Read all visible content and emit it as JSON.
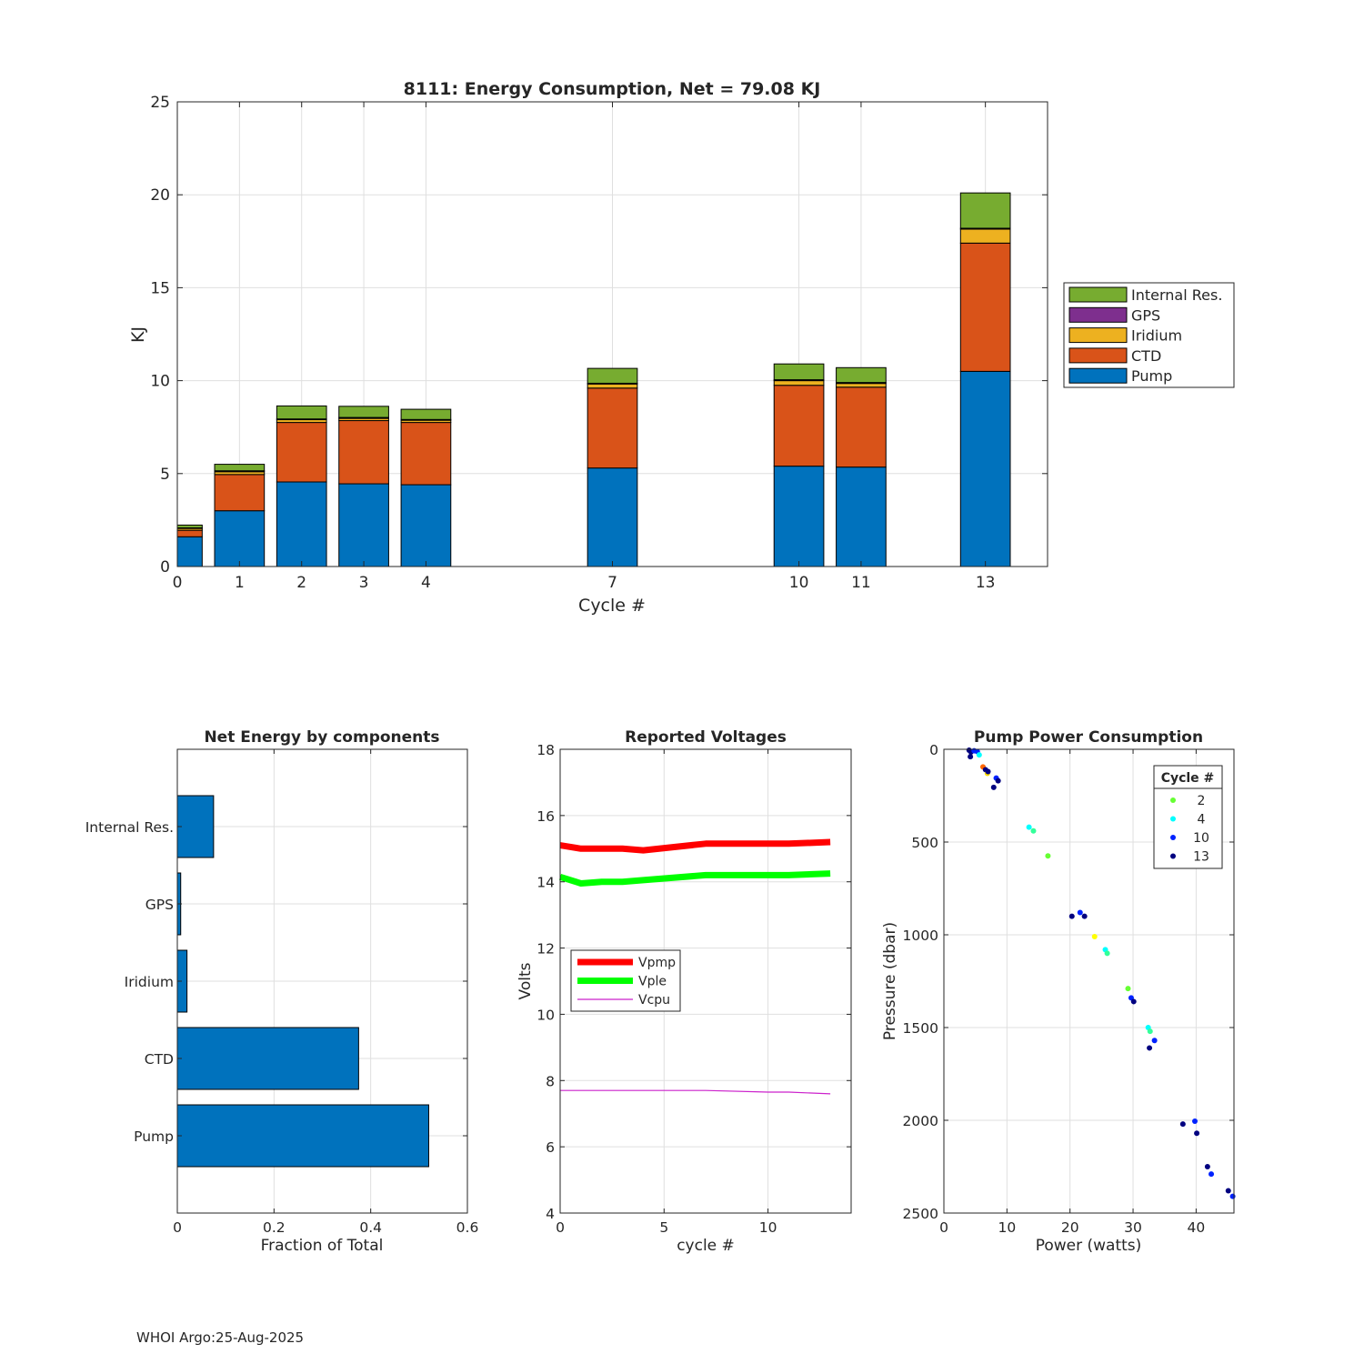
{
  "footer": "WHOI Argo:25-Aug-2025",
  "chart_data": [
    {
      "id": "energy",
      "type": "bar",
      "stacked": true,
      "title": "8111: Energy Consumption,  Net =  79.08 KJ",
      "xlabel": "Cycle #",
      "ylabel": "KJ",
      "xlim": [
        0,
        14
      ],
      "ylim": [
        0,
        25
      ],
      "xticks": [
        0,
        1,
        2,
        3,
        4,
        7,
        10,
        11,
        13
      ],
      "yticks": [
        0,
        5,
        10,
        15,
        20,
        25
      ],
      "categories": [
        0,
        1,
        2,
        3,
        4,
        7,
        10,
        11,
        13
      ],
      "legend_location": "outside-right",
      "series": [
        {
          "name": "Pump",
          "color": "#0072BD",
          "values": [
            1.6,
            3.0,
            4.55,
            4.45,
            4.4,
            5.3,
            5.4,
            5.35,
            10.5
          ]
        },
        {
          "name": "CTD",
          "color": "#D95319",
          "values": [
            0.35,
            1.95,
            3.2,
            3.4,
            3.35,
            4.3,
            4.35,
            4.3,
            6.9
          ]
        },
        {
          "name": "Iridium",
          "color": "#EDB120",
          "values": [
            0.1,
            0.15,
            0.15,
            0.12,
            0.12,
            0.22,
            0.25,
            0.2,
            0.75
          ]
        },
        {
          "name": "GPS",
          "color": "#7E2F8E",
          "values": [
            0.03,
            0.05,
            0.04,
            0.05,
            0.04,
            0.04,
            0.05,
            0.05,
            0.05
          ]
        },
        {
          "name": "Internal Res.",
          "color": "#77AC30",
          "values": [
            0.15,
            0.35,
            0.7,
            0.6,
            0.55,
            0.8,
            0.85,
            0.8,
            1.9
          ]
        }
      ]
    },
    {
      "id": "components",
      "type": "barh",
      "title": "Net Energy by components",
      "xlabel": "Fraction of Total",
      "xlim": [
        0,
        0.6
      ],
      "xticks": [
        0,
        0.2,
        0.4,
        0.6
      ],
      "xtick_labels": [
        "0",
        "0.2",
        "0.4",
        "0.6"
      ],
      "categories": [
        "Pump",
        "CTD",
        "Iridium",
        "GPS",
        "Internal Res."
      ],
      "values": [
        0.52,
        0.375,
        0.02,
        0.007,
        0.075
      ],
      "color": "#0072BD"
    },
    {
      "id": "voltages",
      "type": "line",
      "title": "Reported Voltages",
      "xlabel": "cycle #",
      "ylabel": "Volts",
      "xlim": [
        0,
        14
      ],
      "ylim": [
        4,
        18
      ],
      "xticks": [
        0,
        5,
        10
      ],
      "yticks": [
        4,
        6,
        8,
        10,
        12,
        14,
        16,
        18
      ],
      "series": [
        {
          "name": "Vpmp",
          "color": "#FF0000",
          "width": "thick",
          "x": [
            0,
            1,
            2,
            3,
            4,
            7,
            10,
            11,
            13
          ],
          "y": [
            15.1,
            15.0,
            15.0,
            15.0,
            14.95,
            15.15,
            15.15,
            15.15,
            15.2
          ]
        },
        {
          "name": "Vple",
          "color": "#00FF00",
          "width": "thick",
          "x": [
            0,
            1,
            2,
            3,
            4,
            7,
            10,
            11,
            13
          ],
          "y": [
            14.15,
            13.95,
            14.0,
            14.0,
            14.05,
            14.2,
            14.2,
            14.2,
            14.25
          ]
        },
        {
          "name": "Vcpu",
          "color": "#CC22CC",
          "width": "thin",
          "x": [
            0,
            1,
            2,
            3,
            4,
            7,
            10,
            11,
            13
          ],
          "y": [
            7.7,
            7.7,
            7.7,
            7.7,
            7.7,
            7.7,
            7.65,
            7.65,
            7.6
          ]
        }
      ],
      "legend_location": "center-left"
    },
    {
      "id": "pump",
      "type": "scatter",
      "title": "Pump Power Consumption",
      "xlabel": "Power (watts)",
      "ylabel": "Pressure (dbar)",
      "xlim": [
        0,
        46
      ],
      "ylim": [
        0,
        2500
      ],
      "y_reversed": true,
      "xticks": [
        0,
        10,
        20,
        30,
        40
      ],
      "yticks": [
        0,
        500,
        1000,
        1500,
        2000,
        2500
      ],
      "legend_title": "Cycle #",
      "legend_location": "top-right",
      "legend": [
        {
          "label": "2",
          "color": "#66FF33"
        },
        {
          "label": "4",
          "color": "#00FFFF"
        },
        {
          "label": "10",
          "color": "#0022FF"
        },
        {
          "label": "13",
          "color": "#000080"
        }
      ],
      "points": [
        {
          "x": 4.0,
          "y": 5,
          "c": "#000080"
        },
        {
          "x": 4.3,
          "y": 15,
          "c": "#000080"
        },
        {
          "x": 4.8,
          "y": 8,
          "c": "#0022FF"
        },
        {
          "x": 5.3,
          "y": 12,
          "c": "#0022FF"
        },
        {
          "x": 5.6,
          "y": 30,
          "c": "#00FFFF"
        },
        {
          "x": 4.2,
          "y": 40,
          "c": "#000080"
        },
        {
          "x": 6.2,
          "y": 95,
          "c": "#FF6600"
        },
        {
          "x": 6.6,
          "y": 110,
          "c": "#000080"
        },
        {
          "x": 6.9,
          "y": 130,
          "c": "#FFDD00"
        },
        {
          "x": 7.0,
          "y": 120,
          "c": "#000080"
        },
        {
          "x": 8.3,
          "y": 155,
          "c": "#0022FF"
        },
        {
          "x": 8.6,
          "y": 170,
          "c": "#000080"
        },
        {
          "x": 7.9,
          "y": 205,
          "c": "#000080"
        },
        {
          "x": 13.5,
          "y": 420,
          "c": "#00FFFF"
        },
        {
          "x": 14.2,
          "y": 440,
          "c": "#33FF99"
        },
        {
          "x": 16.5,
          "y": 575,
          "c": "#66FF33"
        },
        {
          "x": 20.3,
          "y": 900,
          "c": "#000080"
        },
        {
          "x": 21.6,
          "y": 880,
          "c": "#0022FF"
        },
        {
          "x": 22.3,
          "y": 900,
          "c": "#000080"
        },
        {
          "x": 23.9,
          "y": 1010,
          "c": "#FFFF00"
        },
        {
          "x": 25.6,
          "y": 1080,
          "c": "#00FFFF"
        },
        {
          "x": 25.9,
          "y": 1100,
          "c": "#33FF99"
        },
        {
          "x": 29.2,
          "y": 1290,
          "c": "#66FF33"
        },
        {
          "x": 29.7,
          "y": 1340,
          "c": "#0022FF"
        },
        {
          "x": 30.1,
          "y": 1360,
          "c": "#000080"
        },
        {
          "x": 32.4,
          "y": 1500,
          "c": "#00FFFF"
        },
        {
          "x": 32.7,
          "y": 1520,
          "c": "#33FF99"
        },
        {
          "x": 33.4,
          "y": 1570,
          "c": "#0022FF"
        },
        {
          "x": 32.6,
          "y": 1610,
          "c": "#000080"
        },
        {
          "x": 37.9,
          "y": 2020,
          "c": "#000080"
        },
        {
          "x": 39.8,
          "y": 2005,
          "c": "#0022FF"
        },
        {
          "x": 40.1,
          "y": 2070,
          "c": "#000080"
        },
        {
          "x": 41.8,
          "y": 2250,
          "c": "#000080"
        },
        {
          "x": 42.4,
          "y": 2290,
          "c": "#0022FF"
        },
        {
          "x": 45.1,
          "y": 2380,
          "c": "#000080"
        },
        {
          "x": 45.8,
          "y": 2410,
          "c": "#0022FF"
        }
      ]
    }
  ]
}
